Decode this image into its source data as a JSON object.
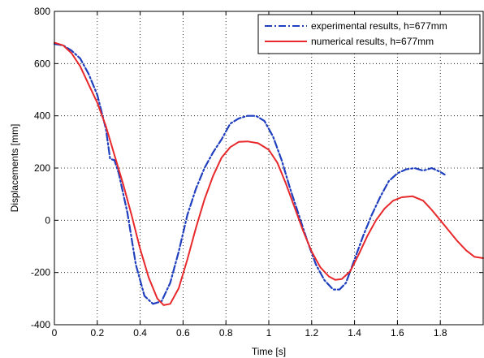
{
  "chart_data": {
    "type": "line",
    "xlabel": "Time [s]",
    "ylabel": "Displacements [mm]",
    "xlim": [
      0,
      2
    ],
    "ylim": [
      -400,
      800
    ],
    "x_ticks": [
      0,
      0.2,
      0.4,
      0.6,
      0.8,
      1,
      1.2,
      1.4,
      1.6,
      1.8
    ],
    "y_ticks": [
      -400,
      -200,
      0,
      200,
      400,
      600,
      800
    ],
    "x_tick_labels": [
      "0",
      "0.2",
      "0.4",
      "0.6",
      "0.8",
      "1",
      "1.2",
      "1.4",
      "1.6",
      "1.8"
    ],
    "y_tick_labels": [
      "-400",
      "-200",
      "0",
      "200",
      "400",
      "600",
      "800"
    ],
    "grid": true,
    "legend_position": "top-right",
    "series": [
      {
        "name": "experimental results, h=677mm",
        "color": "#1f3fbf",
        "style": "dash-dot",
        "x": [
          0,
          0.04,
          0.08,
          0.12,
          0.16,
          0.2,
          0.24,
          0.26,
          0.28,
          0.3,
          0.34,
          0.38,
          0.42,
          0.46,
          0.5,
          0.54,
          0.58,
          0.62,
          0.66,
          0.7,
          0.74,
          0.78,
          0.82,
          0.86,
          0.9,
          0.94,
          0.98,
          1.02,
          1.06,
          1.1,
          1.14,
          1.18,
          1.22,
          1.26,
          1.3,
          1.33,
          1.36,
          1.4,
          1.44,
          1.48,
          1.52,
          1.56,
          1.6,
          1.64,
          1.68,
          1.72,
          1.76,
          1.8,
          1.82
        ],
        "y": [
          675,
          670,
          650,
          620,
          560,
          480,
          350,
          235,
          230,
          180,
          30,
          -170,
          -290,
          -320,
          -310,
          -240,
          -120,
          20,
          120,
          200,
          260,
          310,
          370,
          390,
          400,
          400,
          380,
          320,
          230,
          120,
          20,
          -80,
          -170,
          -230,
          -265,
          -265,
          -240,
          -150,
          -60,
          20,
          90,
          150,
          180,
          195,
          200,
          190,
          200,
          185,
          175
        ]
      },
      {
        "name": "numerical results, h=677mm",
        "color": "#e8282b",
        "style": "solid",
        "x": [
          0,
          0.04,
          0.08,
          0.12,
          0.16,
          0.2,
          0.24,
          0.28,
          0.32,
          0.36,
          0.4,
          0.44,
          0.48,
          0.51,
          0.54,
          0.58,
          0.62,
          0.66,
          0.7,
          0.74,
          0.78,
          0.82,
          0.86,
          0.9,
          0.95,
          1,
          1.04,
          1.08,
          1.12,
          1.16,
          1.2,
          1.24,
          1.28,
          1.31,
          1.34,
          1.38,
          1.42,
          1.46,
          1.5,
          1.54,
          1.58,
          1.62,
          1.67,
          1.72,
          1.76,
          1.8,
          1.84,
          1.88,
          1.92,
          1.96,
          2
        ],
        "y": [
          680,
          670,
          640,
          590,
          520,
          450,
          360,
          250,
          140,
          20,
          -110,
          -220,
          -300,
          -325,
          -320,
          -260,
          -150,
          -30,
          80,
          170,
          240,
          280,
          300,
          302,
          295,
          270,
          220,
          140,
          50,
          -40,
          -120,
          -180,
          -215,
          -228,
          -225,
          -195,
          -130,
          -60,
          0,
          45,
          75,
          88,
          92,
          75,
          40,
          0,
          -40,
          -80,
          -115,
          -140,
          -145
        ]
      }
    ]
  }
}
